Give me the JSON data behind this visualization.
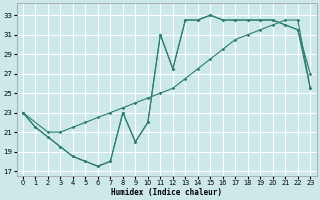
{
  "xlabel": "Humidex (Indice chaleur)",
  "bg_color": "#cce8e8",
  "grid_color": "#ffffff",
  "line_color": "#2d7d6e",
  "xlim": [
    -0.5,
    23.5
  ],
  "ylim": [
    16.5,
    34.2
  ],
  "xticks": [
    0,
    1,
    2,
    3,
    4,
    5,
    6,
    7,
    8,
    9,
    10,
    11,
    12,
    13,
    14,
    15,
    16,
    17,
    18,
    19,
    20,
    21,
    22,
    23
  ],
  "yticks": [
    17,
    19,
    21,
    23,
    25,
    27,
    29,
    31,
    33
  ],
  "line1_x": [
    0,
    1,
    2,
    3,
    4,
    5,
    6,
    7,
    8,
    9,
    10,
    11,
    12,
    13,
    14,
    15,
    16,
    17,
    18,
    19,
    20,
    21,
    22,
    23
  ],
  "line1_y": [
    23.0,
    21.5,
    20.5,
    19.5,
    18.5,
    18.0,
    17.5,
    18.0,
    23.0,
    20.0,
    22.0,
    31.0,
    27.5,
    32.5,
    32.5,
    33.0,
    32.5,
    32.5,
    32.5,
    32.5,
    32.5,
    32.0,
    31.5,
    27.0
  ],
  "line2_x": [
    0,
    2,
    3,
    4,
    5,
    6,
    7,
    8,
    9,
    10,
    11,
    12,
    13,
    14,
    15,
    16,
    17,
    18,
    19,
    20,
    21,
    22,
    23
  ],
  "line2_y": [
    23.0,
    21.0,
    21.0,
    21.5,
    22.0,
    22.5,
    23.0,
    23.5,
    24.0,
    24.5,
    25.0,
    25.5,
    26.5,
    27.5,
    28.5,
    29.5,
    30.5,
    31.0,
    31.5,
    32.0,
    32.5,
    32.5,
    25.5
  ],
  "line3_x": [
    0,
    1,
    2,
    3,
    4,
    5,
    6,
    7,
    8,
    9,
    10,
    11,
    12,
    13,
    14,
    15,
    16,
    17,
    18,
    19,
    20,
    21,
    22,
    23
  ],
  "line3_y": [
    23.0,
    21.5,
    20.5,
    19.5,
    18.5,
    18.0,
    17.5,
    18.0,
    23.0,
    20.0,
    22.0,
    31.0,
    27.5,
    32.5,
    32.5,
    33.0,
    32.5,
    32.5,
    32.5,
    32.5,
    32.5,
    32.0,
    31.5,
    25.5
  ]
}
